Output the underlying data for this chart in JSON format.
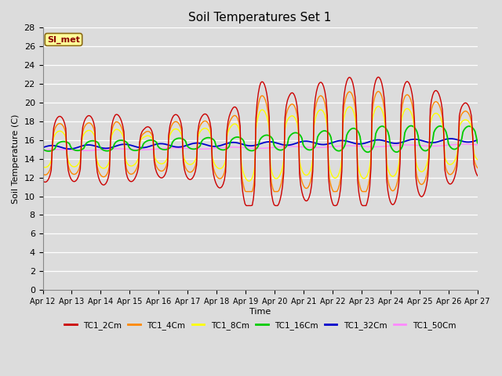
{
  "title": "Soil Temperatures Set 1",
  "xlabel": "Time",
  "ylabel": "Soil Temperature (C)",
  "ylim": [
    0,
    28
  ],
  "yticks": [
    0,
    2,
    4,
    6,
    8,
    10,
    12,
    14,
    16,
    18,
    20,
    22,
    24,
    26,
    28
  ],
  "xtick_labels": [
    "Apr 12",
    "Apr 13",
    "Apr 14",
    "Apr 15",
    "Apr 16",
    "Apr 17",
    "Apr 18",
    "Apr 19",
    "Apr 20",
    "Apr 21",
    "Apr 22",
    "Apr 23",
    "Apr 24",
    "Apr 25",
    "Apr 26",
    "Apr 27"
  ],
  "series_colors": {
    "TC1_2Cm": "#cc0000",
    "TC1_4Cm": "#ff8800",
    "TC1_8Cm": "#ffff00",
    "TC1_16Cm": "#00cc00",
    "TC1_32Cm": "#0000cc",
    "TC1_50Cm": "#ff88ff"
  },
  "legend_label": "SI_met",
  "bg_color": "#dcdcdc",
  "grid_color": "#ffffff",
  "title_fontsize": 11
}
